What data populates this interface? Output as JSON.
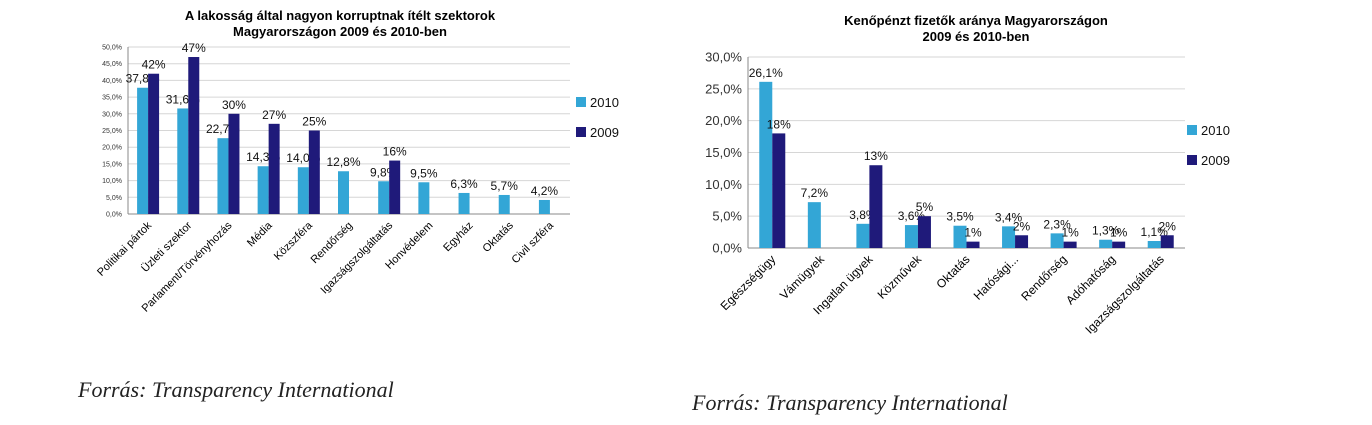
{
  "colors": {
    "series_2010": "#33a6d6",
    "series_2009": "#1f1a7a",
    "grid": "#d6d6d6",
    "axis": "#888888"
  },
  "sources": {
    "left": "Forrás: Transparency International",
    "right": "Forrás: Transparency International"
  },
  "chart_data": [
    {
      "type": "bar",
      "title": [
        "A lakosság által nagyon korruptnak ítélt szektorok",
        "Magyarországon 2009 és 2010-ben"
      ],
      "xlabel": "",
      "ylabel": "",
      "ylim": [
        0,
        50
      ],
      "ticks": [
        "0,0%",
        "5,0%",
        "10,0%",
        "15,0%",
        "20,0%",
        "25,0%",
        "30,0%",
        "35,0%",
        "40,0%",
        "45,0%",
        "50,0%"
      ],
      "categories": [
        "Politikai pártok",
        "Üzleti szektor",
        "Parlament/Törvényhozás",
        "Média",
        "Közszféra",
        "Rendőrség",
        "Igazságszolgáltatás",
        "Honvédelem",
        "Egyház",
        "Oktatás",
        "Civil szféra"
      ],
      "series": [
        {
          "name": "2010",
          "values": [
            37.8,
            31.6,
            22.7,
            14.3,
            14.0,
            12.8,
            9.8,
            9.5,
            6.3,
            5.7,
            4.2
          ],
          "labels": [
            "37,8%",
            "31,6%",
            "22,7%",
            "14,3%",
            "14,0%",
            "12,8%",
            "9,8%",
            "9,5%",
            "6,3%",
            "5,7%",
            "4,2%"
          ]
        },
        {
          "name": "2009",
          "values": [
            42,
            47,
            30,
            27,
            25,
            null,
            16,
            null,
            null,
            null,
            null
          ],
          "labels": [
            "42%",
            "47%",
            "30%",
            "27%",
            "25%",
            "",
            "16%",
            "",
            "",
            "",
            ""
          ]
        }
      ],
      "legend_position": "right",
      "grid": true
    },
    {
      "type": "bar",
      "title": [
        "Kenőpénzt fizetők aránya Magyarországon",
        "2009 és 2010-ben"
      ],
      "xlabel": "",
      "ylabel": "",
      "ylim": [
        0,
        30
      ],
      "ticks": [
        "0,0%",
        "5,0%",
        "10,0%",
        "15,0%",
        "20,0%",
        "25,0%",
        "30,0%"
      ],
      "categories": [
        "Egészségügy",
        "Vámügyek",
        "Ingatlan ügyek",
        "Közművek",
        "Oktatás",
        "Hatósági...",
        "Rendőrség",
        "Adóhatóság",
        "Igazságszolgáltatás"
      ],
      "series": [
        {
          "name": "2010",
          "values": [
            26.1,
            7.2,
            3.8,
            3.6,
            3.5,
            3.4,
            2.3,
            1.3,
            1.1
          ],
          "labels": [
            "26,1%",
            "7,2%",
            "3,8%",
            "3,6%",
            "3,5%",
            "3,4%",
            "2,3%",
            "1,3%",
            "1,1%"
          ]
        },
        {
          "name": "2009",
          "values": [
            18,
            null,
            13,
            5,
            1,
            2,
            1,
            1,
            2
          ],
          "labels": [
            "18%",
            "",
            "13%",
            "5%",
            "1%",
            "2%",
            "1%",
            "1%",
            "2%"
          ]
        }
      ],
      "legend_position": "right",
      "grid": true
    }
  ]
}
